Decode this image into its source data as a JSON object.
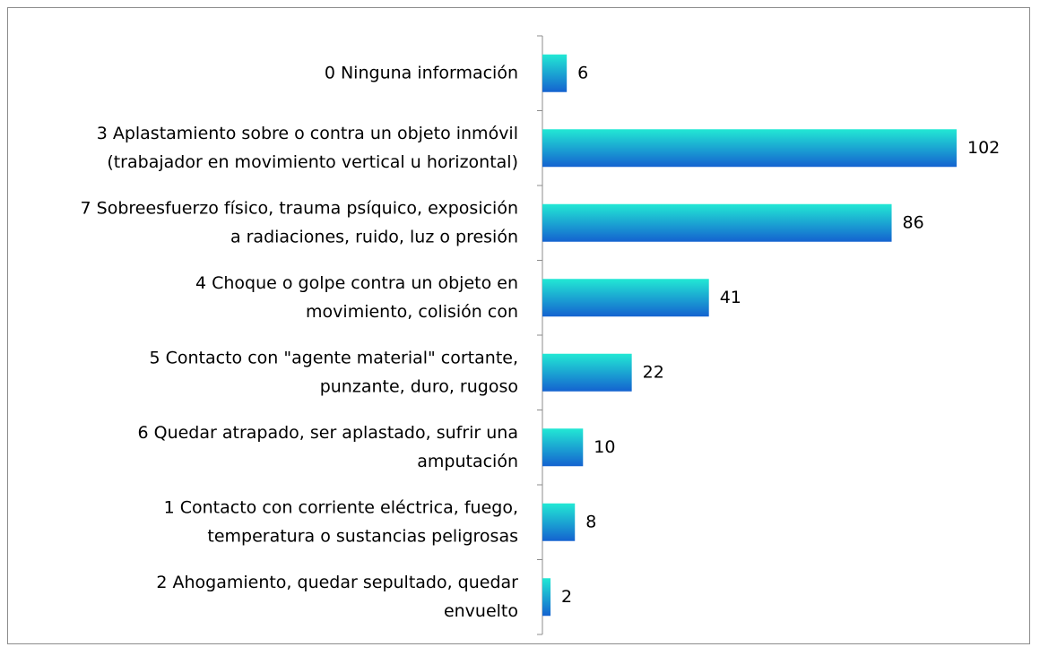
{
  "chart_data": {
    "type": "hbar",
    "categories": [
      [
        "0 Ninguna información"
      ],
      [
        "3 Aplastamiento sobre o contra un objeto inmóvil",
        "(trabajador en movimiento vertical u horizontal)"
      ],
      [
        "7 Sobreesfuerzo físico, trauma psíquico, exposición",
        "a radiaciones, ruido, luz o presión"
      ],
      [
        "4 Choque o golpe contra un objeto en",
        "movimiento, colisión con"
      ],
      [
        "5 Contacto con \"agente material\" cortante,",
        "punzante, duro, rugoso"
      ],
      [
        "6 Quedar atrapado, ser aplastado, sufrir una",
        "amputación"
      ],
      [
        "1 Contacto con corriente eléctrica, fuego,",
        "temperatura o sustancias peligrosas"
      ],
      [
        "2 Ahogamiento, quedar sepultado, quedar",
        "envuelto"
      ]
    ],
    "values": [
      6,
      102,
      86,
      41,
      22,
      10,
      8,
      2
    ],
    "xlim": [
      0,
      102
    ],
    "gradient": [
      "#22e8d4",
      "#1462d0"
    ]
  }
}
